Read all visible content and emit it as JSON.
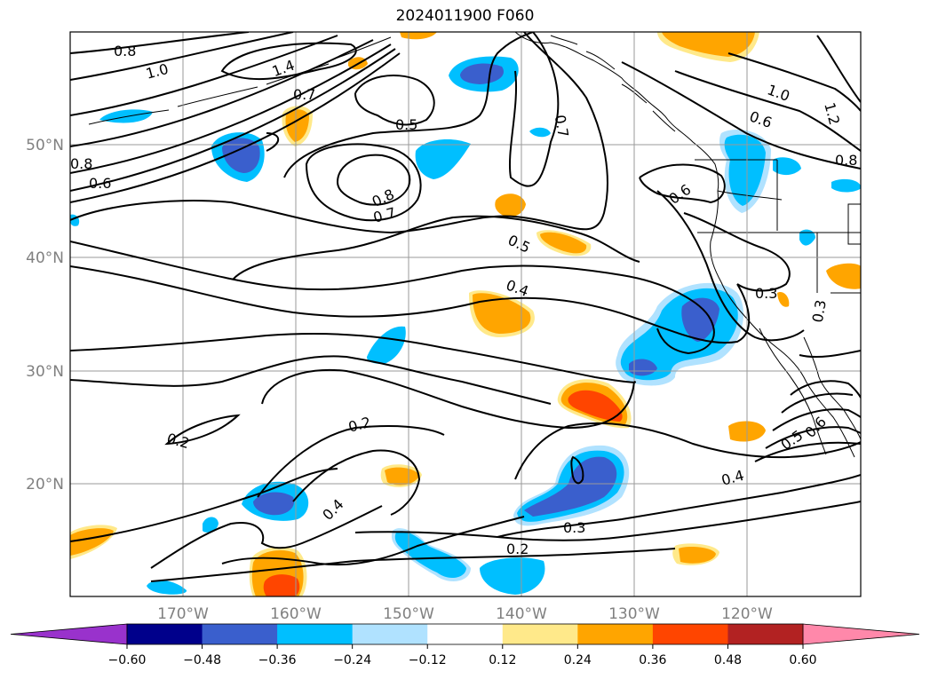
{
  "title": "2024011900 F060",
  "map": {
    "projection": "Mercator",
    "lon_range": [
      -180,
      -110
    ],
    "lat_range": [
      10,
      60
    ],
    "lon_ticks": [
      "170°W",
      "160°W",
      "150°W",
      "140°W",
      "130°W",
      "120°W"
    ],
    "lat_ticks": [
      "50°N",
      "40°N",
      "30°N",
      "20°N"
    ],
    "grid": true
  },
  "colorbar": {
    "orientation": "horizontal",
    "extend": "both",
    "levels": [
      -0.72,
      -0.6,
      -0.48,
      -0.36,
      -0.24,
      -0.12,
      0.12,
      0.24,
      0.36,
      0.48,
      0.6,
      0.72
    ],
    "tick_labels": [
      "−0.60",
      "−0.48",
      "−0.36",
      "−0.24",
      "−0.12",
      "0.12",
      "0.24",
      "0.36",
      "0.48",
      "0.60"
    ],
    "colors": {
      "under": "#9932CC",
      "bins": [
        "#00008B",
        "#3A5FCD",
        "#00BFFF",
        "#B0E2FF",
        "#FFFFFF",
        "#FFE98A",
        "#FFA500",
        "#FF4500",
        "#B22222"
      ],
      "over": "#FF88AA"
    }
  },
  "contour_labels": [
    "0.8",
    "1.0",
    "1.4",
    "0.7",
    "0.5",
    "0.8",
    "0.7",
    "0.6",
    "0.8",
    "0.7",
    "1.0",
    "0.6",
    "1.2",
    "0.8",
    "0.6",
    "0.5",
    "0.4",
    "0.3",
    "0.3",
    "0.2",
    "0.2",
    "0.5",
    "0.6",
    "0.4",
    "0.4",
    "0.3",
    "0.2"
  ]
}
